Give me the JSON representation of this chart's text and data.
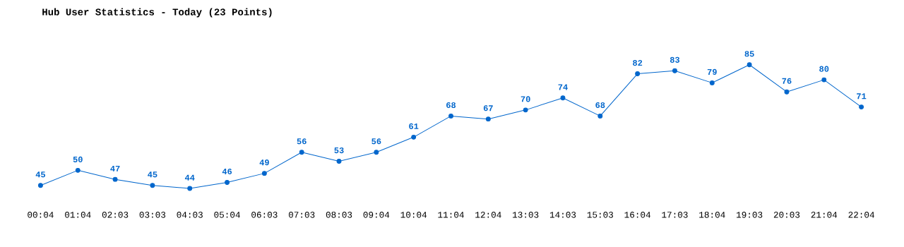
{
  "chart_data": {
    "type": "line",
    "title": "Hub User Statistics - Today (23 Points)",
    "categories": [
      "00:04",
      "01:04",
      "02:03",
      "03:03",
      "04:03",
      "05:04",
      "06:03",
      "07:03",
      "08:03",
      "09:04",
      "10:04",
      "11:04",
      "12:04",
      "13:03",
      "14:03",
      "15:03",
      "16:04",
      "17:03",
      "18:04",
      "19:03",
      "20:03",
      "21:04",
      "22:04"
    ],
    "series": [
      {
        "color": "#0066cc",
        "values": [
          45,
          50,
          47,
          45,
          44,
          46,
          49,
          56,
          53,
          56,
          61,
          68,
          67,
          70,
          74,
          68,
          82,
          83,
          79,
          85,
          76,
          80,
          71
        ]
      }
    ],
    "data_labels": true,
    "marker": "circle",
    "grid": false
  }
}
